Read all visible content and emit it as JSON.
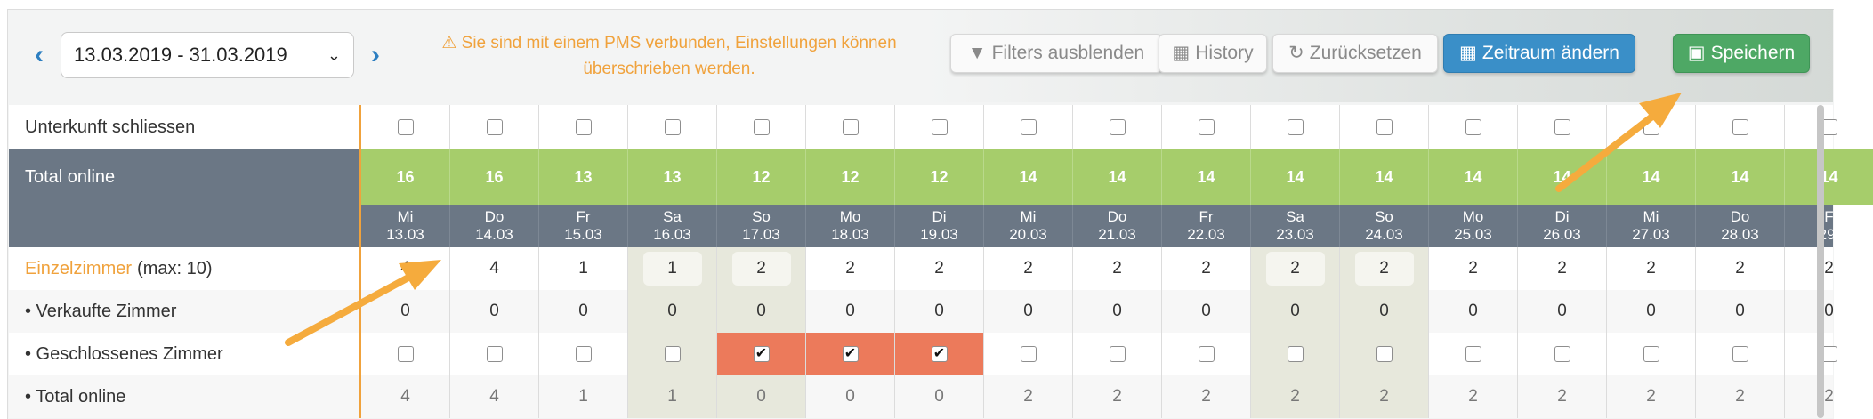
{
  "toolbar": {
    "date_range": "13.03.2019 - 31.03.2019",
    "warning": "Sie sind mit einem PMS verbunden, Einstellungen können überschrieben werden.",
    "buttons": {
      "filters": "Filters ausblenden",
      "history": "History",
      "reset": "Zurücksetzen",
      "change_period": "Zeitraum ändern",
      "save": "Speichern"
    },
    "colors": {
      "warning": "#f0a23c",
      "blue": "#3a8fc8",
      "green": "#4ea865"
    }
  },
  "rows": {
    "close_property": "Unterkunft schliessen",
    "total_online": "Total online",
    "room_name": "Einzelzimmer",
    "room_max": "(max: 10)",
    "sold_rooms": "• Verkaufte Zimmer",
    "closed_room": "• Geschlossenes Zimmer",
    "total_online_room": "• Total online"
  },
  "days": [
    {
      "dow": "Mi",
      "date": "13.03",
      "total": "16",
      "avail": "4",
      "sold": "0",
      "closed": false,
      "online": "4",
      "weekend": false
    },
    {
      "dow": "Do",
      "date": "14.03",
      "total": "16",
      "avail": "4",
      "sold": "0",
      "closed": false,
      "online": "4",
      "weekend": false
    },
    {
      "dow": "Fr",
      "date": "15.03",
      "total": "13",
      "avail": "1",
      "sold": "0",
      "closed": false,
      "online": "1",
      "weekend": false
    },
    {
      "dow": "Sa",
      "date": "16.03",
      "total": "13",
      "avail": "1",
      "sold": "0",
      "closed": false,
      "online": "1",
      "weekend": true
    },
    {
      "dow": "So",
      "date": "17.03",
      "total": "12",
      "avail": "2",
      "sold": "0",
      "closed": true,
      "online": "0",
      "weekend": true
    },
    {
      "dow": "Mo",
      "date": "18.03",
      "total": "12",
      "avail": "2",
      "sold": "0",
      "closed": true,
      "online": "0",
      "weekend": false
    },
    {
      "dow": "Di",
      "date": "19.03",
      "total": "12",
      "avail": "2",
      "sold": "0",
      "closed": true,
      "online": "0",
      "weekend": false
    },
    {
      "dow": "Mi",
      "date": "20.03",
      "total": "14",
      "avail": "2",
      "sold": "0",
      "closed": false,
      "online": "2",
      "weekend": false
    },
    {
      "dow": "Do",
      "date": "21.03",
      "total": "14",
      "avail": "2",
      "sold": "0",
      "closed": false,
      "online": "2",
      "weekend": false
    },
    {
      "dow": "Fr",
      "date": "22.03",
      "total": "14",
      "avail": "2",
      "sold": "0",
      "closed": false,
      "online": "2",
      "weekend": false
    },
    {
      "dow": "Sa",
      "date": "23.03",
      "total": "14",
      "avail": "2",
      "sold": "0",
      "closed": false,
      "online": "2",
      "weekend": true
    },
    {
      "dow": "So",
      "date": "24.03",
      "total": "14",
      "avail": "2",
      "sold": "0",
      "closed": false,
      "online": "2",
      "weekend": true
    },
    {
      "dow": "Mo",
      "date": "25.03",
      "total": "14",
      "avail": "2",
      "sold": "0",
      "closed": false,
      "online": "2",
      "weekend": false
    },
    {
      "dow": "Di",
      "date": "26.03",
      "total": "14",
      "avail": "2",
      "sold": "0",
      "closed": false,
      "online": "2",
      "weekend": false
    },
    {
      "dow": "Mi",
      "date": "27.03",
      "total": "14",
      "avail": "2",
      "sold": "0",
      "closed": false,
      "online": "2",
      "weekend": false
    },
    {
      "dow": "Do",
      "date": "28.03",
      "total": "14",
      "avail": "2",
      "sold": "0",
      "closed": false,
      "online": "2",
      "weekend": false
    },
    {
      "dow": "F",
      "date": "29.",
      "total": "14",
      "avail": "2",
      "sold": "0",
      "closed": false,
      "online": "2",
      "weekend": false
    }
  ]
}
